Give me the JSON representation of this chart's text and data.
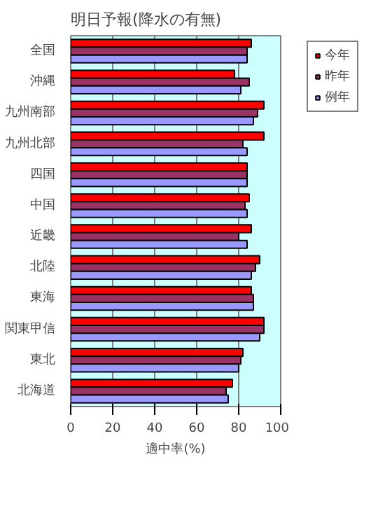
{
  "chart_data": {
    "type": "bar",
    "orientation": "horizontal",
    "title": "明日予報(降水の有無)",
    "xlabel": "適中率(%)",
    "categories": [
      "全国",
      "沖縄",
      "九州南部",
      "九州北部",
      "四国",
      "中国",
      "近畿",
      "北陸",
      "東海",
      "関東甲信",
      "東北",
      "北海道"
    ],
    "series": [
      {
        "name": "今年",
        "color": "#ff0000",
        "values": [
          86,
          78,
          92,
          92,
          84,
          85,
          86,
          90,
          86,
          92,
          82,
          77
        ]
      },
      {
        "name": "昨年",
        "color": "#993366",
        "values": [
          84,
          85,
          89,
          82,
          84,
          83,
          80,
          88,
          87,
          92,
          81,
          74
        ]
      },
      {
        "name": "例年",
        "color": "#9999ff",
        "values": [
          84,
          81,
          87,
          84,
          84,
          84,
          84,
          86,
          87,
          90,
          80,
          75
        ]
      }
    ],
    "xlim": [
      0,
      100
    ],
    "xticks": [
      0,
      20,
      40,
      60,
      80,
      100
    ],
    "grid": "x",
    "legend": "top right"
  }
}
